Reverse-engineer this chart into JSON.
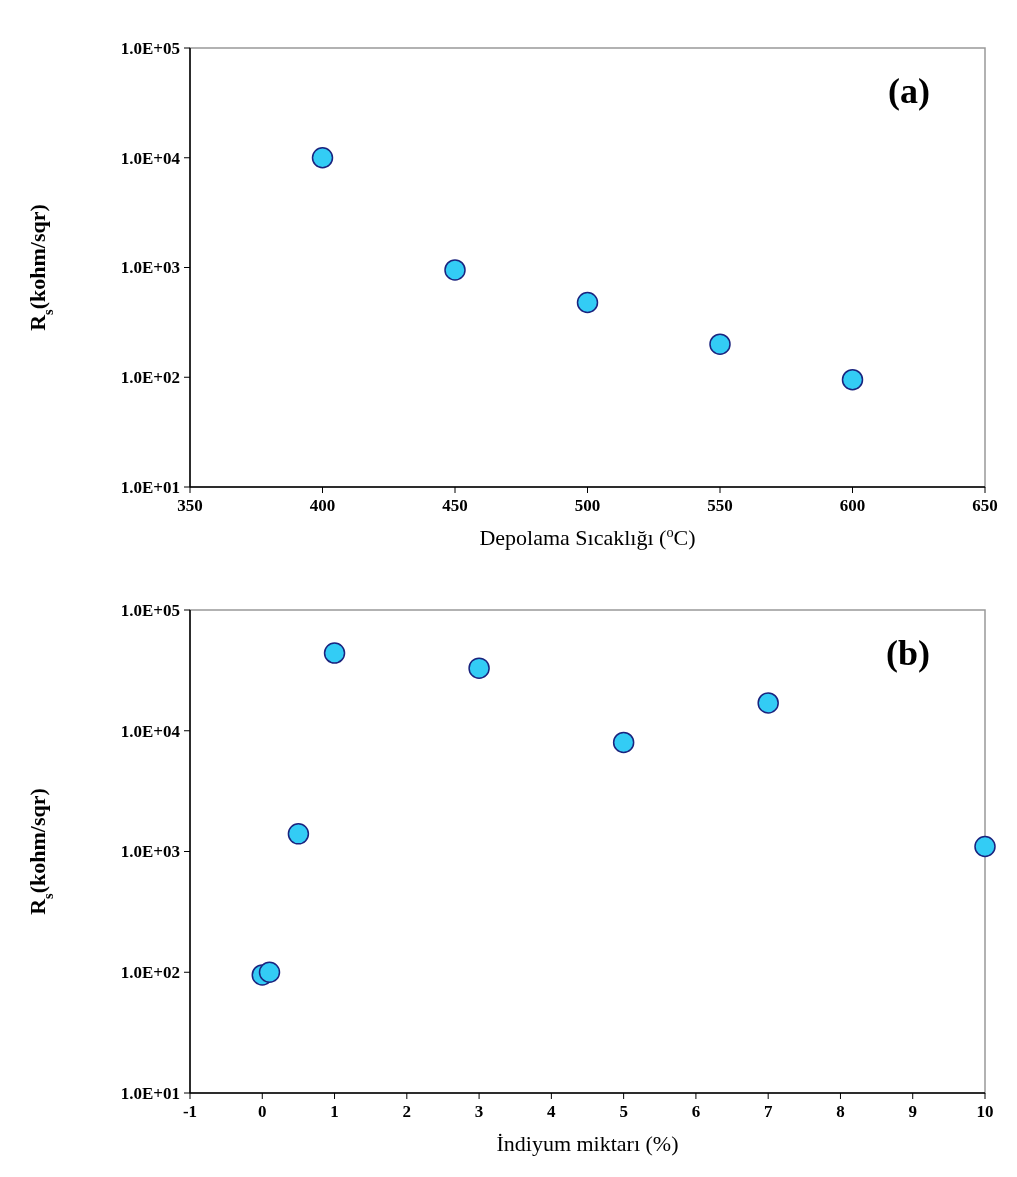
{
  "chart_data": [
    {
      "type": "scatter",
      "xlabel": "Depolama Sıcaklığı ($^{o}$C)",
      "ylabel": "R$_{s}$(kohm/sqr)",
      "annotations": [
        "(a)"
      ],
      "log": "y",
      "marker": "circle",
      "grid": false,
      "x": [
        400,
        450,
        500,
        550,
        600
      ],
      "series": [
        {
          "color": "#33ccf5",
          "values": [
            10000,
            950,
            480,
            200,
            95
          ]
        }
      ],
      "xlim": [
        350,
        650
      ],
      "xticks": [
        350,
        400,
        450,
        500,
        550,
        600,
        650
      ],
      "ylim": [
        10,
        100000
      ],
      "yticks": [
        {
          "value": 10,
          "label": "1.0E+01"
        },
        {
          "value": 100,
          "label": "1.0E+02"
        },
        {
          "value": 1000,
          "label": "1.0E+03"
        },
        {
          "value": 10000,
          "label": "1.0E+04"
        },
        {
          "value": 100000,
          "label": "1.0E+05"
        }
      ]
    },
    {
      "type": "scatter",
      "xlabel": "İndiyum miktarı (%)",
      "ylabel": "R$_{s}$(kohm/sqr)",
      "annotations": [
        "(b)"
      ],
      "log": "y",
      "marker": "circle",
      "grid": false,
      "x": [
        0,
        0.1,
        0.5,
        1,
        3,
        5,
        7,
        10
      ],
      "series": [
        {
          "color": "#33ccf5",
          "values": [
            95,
            100,
            1400,
            44000,
            33000,
            8000,
            17000,
            1100
          ]
        }
      ],
      "xlim": [
        -1,
        10
      ],
      "xticks": [
        -1,
        0,
        1,
        2,
        3,
        4,
        5,
        6,
        7,
        8,
        9,
        10
      ],
      "ylim": [
        10,
        100000
      ],
      "yticks": [
        {
          "value": 10,
          "label": "1.0E+01"
        },
        {
          "value": 100,
          "label": "1.0E+02"
        },
        {
          "value": 1000,
          "label": "1.0E+03"
        },
        {
          "value": 10000,
          "label": "1.0E+04"
        },
        {
          "value": 100000,
          "label": "1.0E+05"
        }
      ]
    }
  ]
}
